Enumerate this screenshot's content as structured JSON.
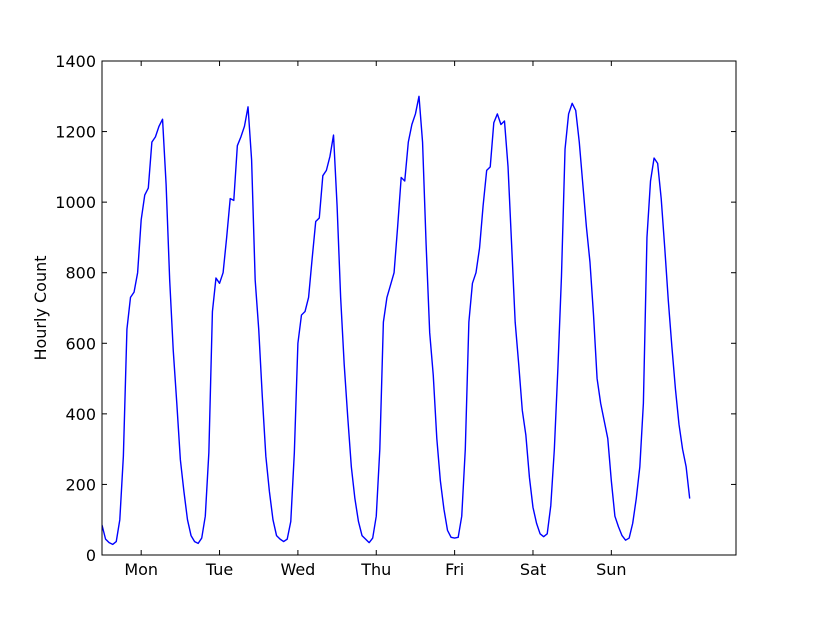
{
  "chart_data": {
    "type": "line",
    "title": "",
    "xlabel": "",
    "ylabel": "Hourly Count",
    "ylim": [
      0,
      1400
    ],
    "xlim": [
      0,
      178
    ],
    "yticks": [
      0,
      200,
      400,
      600,
      800,
      1000,
      1200,
      1400
    ],
    "xtick_positions": [
      11,
      33,
      55,
      77,
      99,
      121,
      143
    ],
    "xtick_labels": [
      "Mon",
      "Tue",
      "Wed",
      "Thu",
      "Fri",
      "Sat",
      "Sun"
    ],
    "grid": false,
    "legend": "none",
    "line_color": "#0000ff",
    "series": [
      {
        "values": [
          85,
          45,
          35,
          30,
          38,
          100,
          280,
          640,
          730,
          745,
          800,
          950,
          1020,
          1040,
          1170,
          1185,
          1215,
          1235,
          1050,
          780,
          580,
          430,
          270,
          180,
          100,
          55,
          38,
          33,
          48,
          110,
          290,
          690,
          785,
          770,
          800,
          900,
          1010,
          1005,
          1160,
          1185,
          1215,
          1270,
          1120,
          780,
          640,
          450,
          280,
          180,
          100,
          55,
          45,
          38,
          45,
          95,
          290,
          600,
          680,
          690,
          730,
          840,
          945,
          955,
          1075,
          1090,
          1130,
          1190,
          990,
          730,
          540,
          390,
          250,
          160,
          95,
          55,
          45,
          35,
          48,
          110,
          300,
          660,
          730,
          765,
          800,
          930,
          1070,
          1060,
          1170,
          1220,
          1250,
          1300,
          1170,
          880,
          630,
          510,
          330,
          210,
          130,
          70,
          50,
          48,
          50,
          110,
          300,
          660,
          770,
          800,
          870,
          990,
          1090,
          1100,
          1225,
          1250,
          1220,
          1230,
          1100,
          880,
          660,
          540,
          410,
          340,
          220,
          135,
          90,
          60,
          52,
          60,
          140,
          300,
          530,
          790,
          1150,
          1250,
          1280,
          1260,
          1170,
          1050,
          930,
          830,
          680,
          500,
          430,
          380,
          330,
          210,
          110,
          80,
          55,
          42,
          48,
          90,
          160,
          250,
          430,
          900,
          1060,
          1125,
          1110,
          1010,
          870,
          720,
          590,
          470,
          370,
          300,
          250,
          160
        ]
      }
    ]
  }
}
